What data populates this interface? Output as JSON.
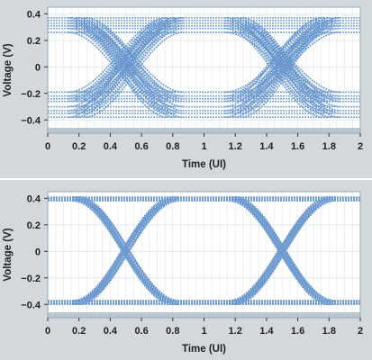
{
  "chart_data": [
    {
      "type": "line",
      "description_visible": "eye diagram (degraded)",
      "xlabel": "Time (UI)",
      "ylabel": "Voltage (V)",
      "xlim": [
        0,
        2
      ],
      "ylim": [
        -0.5,
        0.45
      ],
      "xticks": [
        "0",
        "0.2",
        "0.4",
        "0.6",
        "0.8",
        "1",
        "1.2",
        "1.4",
        "1.6",
        "1.8",
        "2"
      ],
      "xtick_values": [
        0,
        0.2,
        0.4,
        0.6,
        0.8,
        1,
        1.2,
        1.4,
        1.6,
        1.8,
        2
      ],
      "yticks": [
        "0.4",
        "0.2",
        "0",
        "−0.2",
        "−0.4"
      ],
      "ytick_values": [
        0.4,
        0.2,
        0,
        -0.2,
        -0.4
      ],
      "grid": true,
      "levels_high": [
        0.37,
        0.35,
        0.33,
        0.31,
        0.29,
        0.26
      ],
      "levels_low": [
        -0.19,
        -0.22,
        -0.24,
        -0.26,
        -0.3,
        -0.33,
        -0.35,
        -0.38
      ],
      "crossings": [
        0.45,
        0.5,
        0.55,
        1.45,
        1.5,
        1.55
      ],
      "trace_color": "#4a82c4"
    },
    {
      "type": "line",
      "xlabel": "Time (UI)",
      "ylabel": "Voltage (V)",
      "xlim": [
        0,
        2
      ],
      "ylim": [
        -0.5,
        0.45
      ],
      "xticks": [
        "0",
        "0.2",
        "0.4",
        "0.6",
        "0.8",
        "1",
        "1.2",
        "1.4",
        "1.6",
        "1.8",
        "2"
      ],
      "xtick_values": [
        0,
        0.2,
        0.4,
        0.6,
        0.8,
        1,
        1.2,
        1.4,
        1.6,
        1.8,
        2
      ],
      "yticks": [
        "0.4",
        "0.2",
        "0",
        "−0.2",
        "−0.4"
      ],
      "ytick_values": [
        0.4,
        0.2,
        0,
        -0.2,
        -0.4
      ],
      "grid": true,
      "levels_high": [
        0.41,
        0.4,
        0.39,
        0.38
      ],
      "levels_low": [
        -0.37,
        -0.38,
        -0.39,
        -0.4
      ],
      "crossings": [
        0.48,
        0.5,
        0.52,
        1.48,
        1.5,
        1.52
      ],
      "trace_color": "#4a82c4"
    }
  ]
}
